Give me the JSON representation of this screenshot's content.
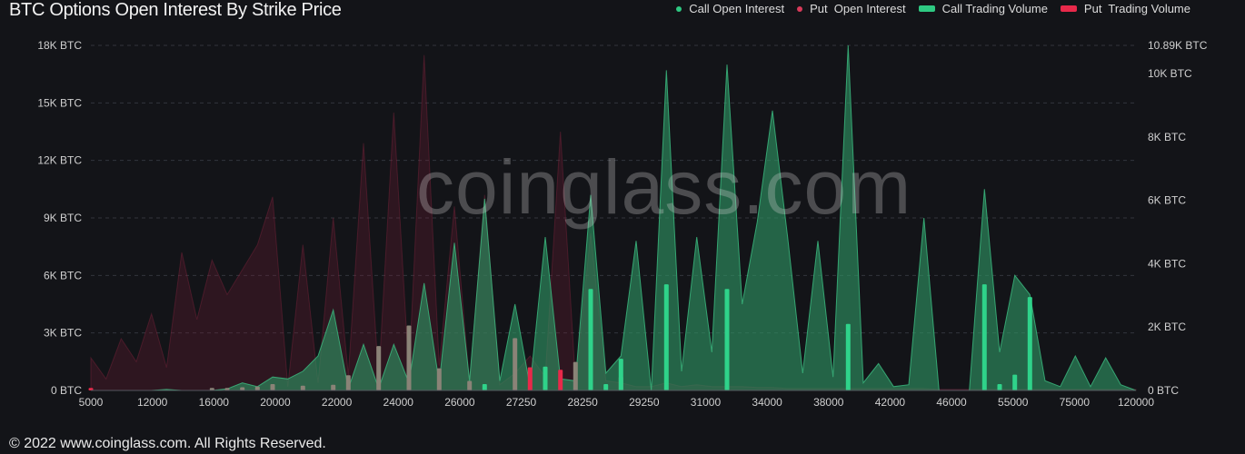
{
  "title": "BTC Options Open Interest By Strike Price",
  "footer": "© 2022 www.coinglass.com. All Rights Reserved.",
  "watermark": "coinglass.com",
  "legend": [
    {
      "label": "Call Open Interest",
      "color": "#2ec982",
      "shape": "dot"
    },
    {
      "label": "Put  Open Interest",
      "color": "#d93a5a",
      "shape": "dot"
    },
    {
      "label": "Call Trading Volume",
      "color": "#2ec982",
      "shape": "bar"
    },
    {
      "label": "Put  Trading Volume",
      "color": "#e8294a",
      "shape": "bar"
    }
  ],
  "chart_data": {
    "type": "area",
    "title": "BTC Options Open Interest By Strike Price",
    "x_tick_labels": [
      "5000",
      "12000",
      "16000",
      "20000",
      "22000",
      "24000",
      "26000",
      "27250",
      "28250",
      "29250",
      "31000",
      "34000",
      "38000",
      "42000",
      "46000",
      "55000",
      "75000",
      "120000"
    ],
    "left_axis": {
      "ticks": [
        "0 BTC",
        "3K BTC",
        "6K BTC",
        "9K BTC",
        "12K BTC",
        "15K BTC",
        "18K BTC"
      ],
      "ylim": [
        0,
        18000
      ]
    },
    "right_axis": {
      "ticks": [
        "0 BTC",
        "2K BTC",
        "4K BTC",
        "6K BTC",
        "8K BTC",
        "10K BTC",
        "10.89K BTC"
      ],
      "ylim": [
        0,
        10890
      ]
    },
    "series": [
      {
        "name": "Call Open Interest",
        "axis": "left",
        "color": "#2ec982",
        "values": [
          0,
          0,
          0,
          0,
          0,
          50,
          0,
          0,
          0,
          80,
          400,
          200,
          700,
          600,
          1000,
          1800,
          4200,
          100,
          2400,
          100,
          2400,
          400,
          5600,
          400,
          7700,
          500,
          10000,
          500,
          4500,
          200,
          8000,
          600,
          500,
          10200,
          900,
          1800,
          7800,
          0,
          16700,
          1000,
          8000,
          2000,
          17000,
          4500,
          8800,
          14600,
          8000,
          900,
          7800,
          700,
          18000,
          400,
          1400,
          200,
          300,
          9000,
          0,
          0,
          0,
          10500,
          2000,
          6000,
          5000,
          500,
          200,
          1800,
          200,
          1700,
          300,
          0
        ]
      },
      {
        "name": "Put  Open Interest",
        "axis": "left",
        "color": "#d93a5a",
        "values": [
          1700,
          600,
          2700,
          1500,
          4000,
          1200,
          7200,
          3700,
          6800,
          5000,
          6300,
          7600,
          10100,
          200,
          7600,
          400,
          9000,
          800,
          12900,
          600,
          14500,
          900,
          17500,
          1300,
          9600,
          400,
          10200,
          300,
          900,
          1800,
          700,
          13500,
          400,
          8200,
          500,
          400,
          200,
          200,
          400,
          200,
          300,
          200,
          200,
          200,
          150,
          150,
          100,
          100,
          100,
          100,
          100,
          100,
          100,
          100,
          100,
          100,
          50,
          50,
          50,
          50,
          50,
          50,
          50,
          50,
          50,
          50,
          50,
          50,
          50,
          50
        ]
      },
      {
        "name": "Call Trading Volume",
        "axis": "right",
        "color": "#2ec982",
        "values": [
          0,
          0,
          0,
          0,
          0,
          0,
          0,
          0,
          0,
          0,
          0,
          0,
          0,
          0,
          0,
          0,
          0,
          0,
          0,
          0,
          0,
          0,
          0,
          0,
          0,
          0,
          200,
          0,
          0,
          0,
          750,
          0,
          0,
          3200,
          200,
          1000,
          0,
          0,
          3350,
          0,
          0,
          0,
          3200,
          0,
          0,
          0,
          0,
          0,
          0,
          0,
          2100,
          0,
          0,
          0,
          0,
          0,
          0,
          0,
          0,
          3350,
          200,
          500,
          2950,
          0,
          0,
          0,
          0,
          0,
          0,
          0
        ]
      },
      {
        "name": "Put  Trading Volume",
        "axis": "right",
        "color": "#e8294a",
        "values": [
          80,
          0,
          0,
          0,
          0,
          0,
          0,
          0,
          0,
          0,
          0,
          0,
          0,
          0,
          0,
          0,
          0,
          0,
          0,
          0,
          0,
          0,
          0,
          0,
          0,
          0,
          0,
          0,
          0,
          730,
          0,
          650,
          0,
          0,
          0,
          0,
          0,
          0,
          0,
          0,
          0,
          0,
          0,
          0,
          0,
          0,
          0,
          0,
          0,
          0,
          0,
          0,
          0,
          0,
          0,
          0,
          0,
          0,
          0,
          0,
          0,
          0,
          0,
          0,
          0,
          0,
          0,
          0,
          0,
          0
        ]
      },
      {
        "name": "Other Trading Volume (grey bars)",
        "axis": "right",
        "color": "#8a8377",
        "values": [
          0,
          0,
          0,
          0,
          0,
          0,
          0,
          0,
          80,
          80,
          100,
          120,
          200,
          0,
          150,
          0,
          180,
          480,
          0,
          1400,
          0,
          2050,
          0,
          700,
          0,
          300,
          0,
          0,
          1650,
          0,
          0,
          0,
          900,
          0,
          0,
          430,
          0,
          0,
          0,
          0,
          0,
          0,
          0,
          0,
          0,
          0,
          0,
          0,
          0,
          0,
          0,
          0,
          0,
          0,
          0,
          0,
          0,
          0,
          0,
          0,
          0,
          0,
          0,
          0,
          0,
          0,
          0,
          0,
          0,
          0
        ]
      }
    ]
  }
}
